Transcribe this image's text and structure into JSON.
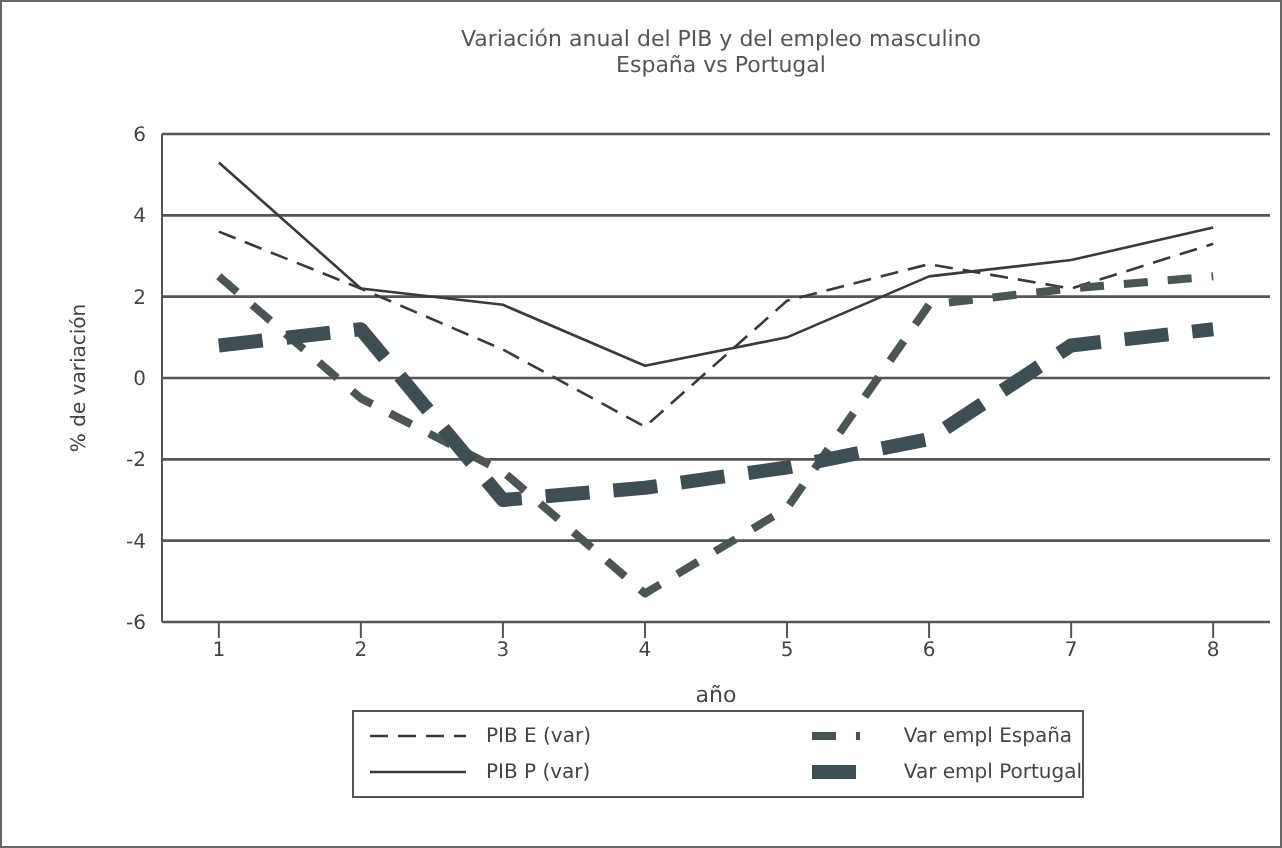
{
  "chart_data": {
    "type": "line",
    "title": "Variación anual del PIB y del empleo masculino\nEspaña vs Portugal",
    "xlabel": "año",
    "ylabel": "% de variación",
    "x": [
      1,
      2,
      3,
      4,
      5,
      6,
      7,
      8
    ],
    "xlim": [
      0.6,
      8.4
    ],
    "xticks": [
      1,
      2,
      3,
      4,
      5,
      6,
      7,
      8
    ],
    "ylim": [
      -6,
      6
    ],
    "yticks": [
      -6,
      -4,
      -2,
      0,
      2,
      4,
      6
    ],
    "grid": "y",
    "legend": "bottom",
    "marker": "none",
    "series": [
      {
        "name": "PIB E (var)",
        "color": "#3a3a3a",
        "line_style": "dashed",
        "values": [
          3.6,
          2.2,
          0.7,
          -1.2,
          1.9,
          2.8,
          2.2,
          3.3
        ]
      },
      {
        "name": "PIB P (var)",
        "color": "#3a3a3a",
        "line_style": "solid",
        "values": [
          5.3,
          2.2,
          1.8,
          0.3,
          1.0,
          2.5,
          2.9,
          3.7
        ]
      },
      {
        "name": "Var empl España",
        "color": "#4a5556",
        "line_style": "dashed",
        "values": [
          2.5,
          -0.5,
          -2.3,
          -5.3,
          -3.2,
          1.8,
          2.2,
          2.5
        ]
      },
      {
        "name": "Var empl Portugal",
        "color": "#3d4f52",
        "line_style": "dashed",
        "values": [
          0.8,
          1.2,
          -3.0,
          -2.7,
          -2.2,
          -1.5,
          0.8,
          1.2
        ]
      }
    ]
  }
}
